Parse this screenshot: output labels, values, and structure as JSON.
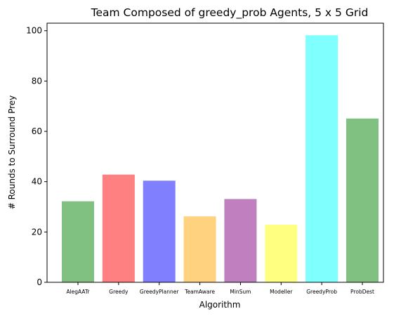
{
  "chart_data": {
    "type": "bar",
    "title": "Team Composed of greedy_prob Agents, 5 x 5 Grid",
    "xlabel": "Algorithm",
    "ylabel": "# Rounds to Surround Prey",
    "categories": [
      "AlegAATr",
      "Greedy",
      "GreedyPlanner",
      "TeamAware",
      "MinSum",
      "Modeller",
      "GreedyProb",
      "ProbDest"
    ],
    "values": [
      32.2,
      42.8,
      40.4,
      26.2,
      33.1,
      22.9,
      98.2,
      65.1
    ],
    "colors": [
      "#80c080",
      "#ff8080",
      "#8080ff",
      "#ffd280",
      "#c080c0",
      "#ffff80",
      "#80ffff",
      "#80c080"
    ],
    "ylim": [
      0,
      103
    ],
    "yticks": [
      0,
      20,
      40,
      60,
      80,
      100
    ],
    "grid": false,
    "legend": "none"
  }
}
